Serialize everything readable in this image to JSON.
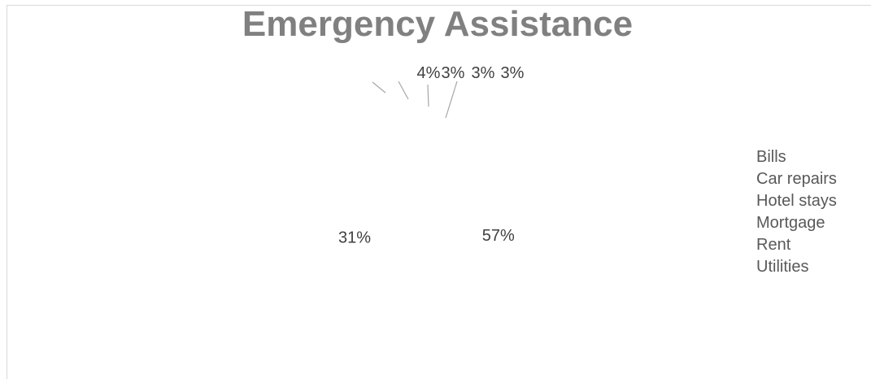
{
  "chart_data": {
    "type": "pie",
    "title": "Emergency Assistance",
    "categories": [
      "Bills",
      "Car repairs",
      "Hotel stays",
      "Mortgage",
      "Rent",
      "Utilities"
    ],
    "values": [
      57,
      31,
      4,
      3,
      3,
      3
    ],
    "data_labels": [
      "57%",
      "31%",
      "4%",
      "3%",
      "3%",
      "3%"
    ],
    "legend": {
      "position": "right",
      "entries": [
        "Bills",
        "Car repairs",
        "Hotel stays",
        "Mortgage",
        "Rent",
        "Utilities"
      ]
    }
  }
}
